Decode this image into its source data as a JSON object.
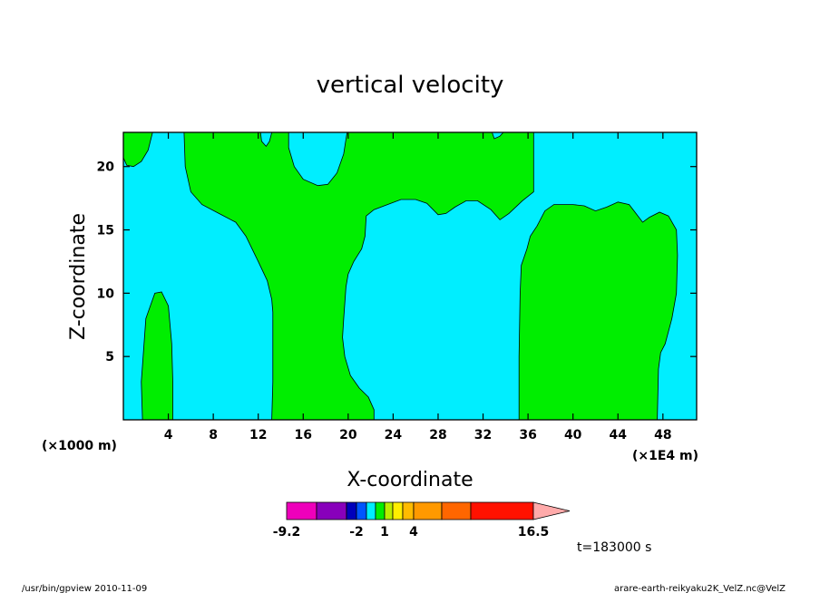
{
  "chart_data": {
    "type": "heatmap",
    "subtype": "filled-contour",
    "title": "vertical velocity",
    "xlabel": "X-coordinate",
    "ylabel": "Z-coordinate",
    "x_unit_left": "(×1000 m)",
    "x_unit_right": "(×1E4 m)",
    "xlim": [
      0,
      51
    ],
    "ylim": [
      0,
      22.7
    ],
    "x_ticks": [
      "4",
      "8",
      "12",
      "16",
      "20",
      "24",
      "28",
      "32",
      "36",
      "40",
      "44",
      "48"
    ],
    "y_ticks": [
      "5",
      "10",
      "15",
      "20"
    ],
    "x_tick_values": [
      4,
      8,
      12,
      16,
      20,
      24,
      28,
      32,
      36,
      40,
      44,
      48
    ],
    "y_tick_values": [
      5,
      10,
      15,
      20
    ],
    "background_level_color": "#00eeff",
    "regions": [
      {
        "name": "left-column",
        "fill": "#00ee00",
        "pts": [
          [
            1.7,
            0
          ],
          [
            1.6,
            3
          ],
          [
            2,
            8
          ],
          [
            2.8,
            10
          ],
          [
            3.4,
            10.1
          ],
          [
            4,
            9
          ],
          [
            4.3,
            6
          ],
          [
            4.4,
            3
          ],
          [
            4.4,
            0
          ]
        ]
      },
      {
        "name": "top-left-corner",
        "fill": "#00ee00",
        "pts": [
          [
            0,
            22.7
          ],
          [
            0,
            20.7
          ],
          [
            0.3,
            20.1
          ],
          [
            0.9,
            20
          ],
          [
            1.6,
            20.4
          ],
          [
            2.2,
            21.3
          ],
          [
            2.6,
            22.7
          ]
        ]
      },
      {
        "name": "central-plume",
        "fill": "#00ee00",
        "pts": [
          [
            13.2,
            0
          ],
          [
            13.3,
            3
          ],
          [
            13.3,
            6
          ],
          [
            13.3,
            8.5
          ],
          [
            13.2,
            9.5
          ],
          [
            12.8,
            11
          ],
          [
            12,
            12.5
          ],
          [
            10.9,
            14.5
          ],
          [
            10,
            15.6
          ],
          [
            8.5,
            16.3
          ],
          [
            7,
            17
          ],
          [
            6,
            18
          ],
          [
            5.5,
            20
          ],
          [
            5.4,
            22.7
          ],
          [
            12.2,
            22.7
          ],
          [
            12.3,
            22
          ],
          [
            12.7,
            21.6
          ],
          [
            13,
            22
          ],
          [
            13.2,
            22.7
          ],
          [
            14.7,
            22.7
          ],
          [
            14.7,
            21.5
          ],
          [
            15.2,
            20
          ],
          [
            16,
            19
          ],
          [
            17.3,
            18.5
          ],
          [
            18.2,
            18.6
          ],
          [
            19,
            19.5
          ],
          [
            19.6,
            21
          ],
          [
            19.9,
            22.7
          ],
          [
            32.8,
            22.7
          ],
          [
            33,
            22.2
          ],
          [
            33.5,
            22.4
          ],
          [
            33.8,
            22.7
          ],
          [
            36.5,
            22.7
          ],
          [
            36.5,
            18
          ],
          [
            35.5,
            17.3
          ],
          [
            34.3,
            16.3
          ],
          [
            33.5,
            15.8
          ],
          [
            32.7,
            16.6
          ],
          [
            31.5,
            17.3
          ],
          [
            30.5,
            17.3
          ],
          [
            29.5,
            16.8
          ],
          [
            28.7,
            16.3
          ],
          [
            28,
            16.2
          ],
          [
            27,
            17.1
          ],
          [
            26,
            17.4
          ],
          [
            24.7,
            17.4
          ],
          [
            23.5,
            17
          ],
          [
            22.3,
            16.6
          ],
          [
            21.6,
            16.1
          ],
          [
            21.5,
            14.5
          ],
          [
            21.2,
            13.5
          ],
          [
            20.5,
            12.5
          ],
          [
            20,
            11.5
          ],
          [
            19.8,
            10.5
          ],
          [
            19.6,
            8
          ],
          [
            19.5,
            6.5
          ],
          [
            19.7,
            5
          ],
          [
            20.2,
            3.5
          ],
          [
            21,
            2.5
          ],
          [
            21.8,
            1.8
          ],
          [
            22.3,
            0.8
          ],
          [
            22.3,
            0
          ]
        ]
      },
      {
        "name": "right-column",
        "fill": "#00ee00",
        "pts": [
          [
            35.2,
            0
          ],
          [
            35.2,
            5
          ],
          [
            35.3,
            10
          ],
          [
            35.4,
            12.2
          ],
          [
            35.9,
            13.5
          ],
          [
            36.2,
            14.5
          ],
          [
            36.8,
            15.3
          ],
          [
            37.5,
            16.5
          ],
          [
            38.3,
            17
          ],
          [
            40,
            17
          ],
          [
            41,
            16.9
          ],
          [
            42,
            16.5
          ],
          [
            43,
            16.8
          ],
          [
            44,
            17.2
          ],
          [
            45,
            17
          ],
          [
            45.6,
            16.3
          ],
          [
            46.2,
            15.6
          ],
          [
            46.8,
            16
          ],
          [
            47.7,
            16.4
          ],
          [
            48.5,
            16.1
          ],
          [
            49.2,
            15
          ],
          [
            49.3,
            13
          ],
          [
            49.2,
            10
          ],
          [
            48.8,
            8
          ],
          [
            48.2,
            6
          ],
          [
            47.8,
            5.3
          ],
          [
            47.6,
            4
          ],
          [
            47.5,
            0
          ]
        ]
      }
    ],
    "colorbar": {
      "segments": [
        {
          "color": "#ee00bb"
        },
        {
          "color": "#8800bb"
        },
        {
          "color": "#0000bb"
        },
        {
          "color": "#0055ff"
        },
        {
          "color": "#00eeff"
        },
        {
          "color": "#00ee00"
        },
        {
          "color": "#bbee00"
        },
        {
          "color": "#ffee00"
        },
        {
          "color": "#ffbb00"
        },
        {
          "color": "#ff9900"
        },
        {
          "color": "#ff6600"
        },
        {
          "color": "#ff1100"
        },
        {
          "color": "#ff7777"
        }
      ],
      "arrow_color": "#ffaaaa",
      "labels": [
        "-9.2",
        "-2",
        "1",
        "4",
        "16.5"
      ]
    }
  },
  "time_label": "t=183000 s",
  "footer_left": "/usr/bin/gpview   2010-11-09",
  "footer_right": "arare-earth-reikyaku2K_VelZ.nc@VelZ"
}
